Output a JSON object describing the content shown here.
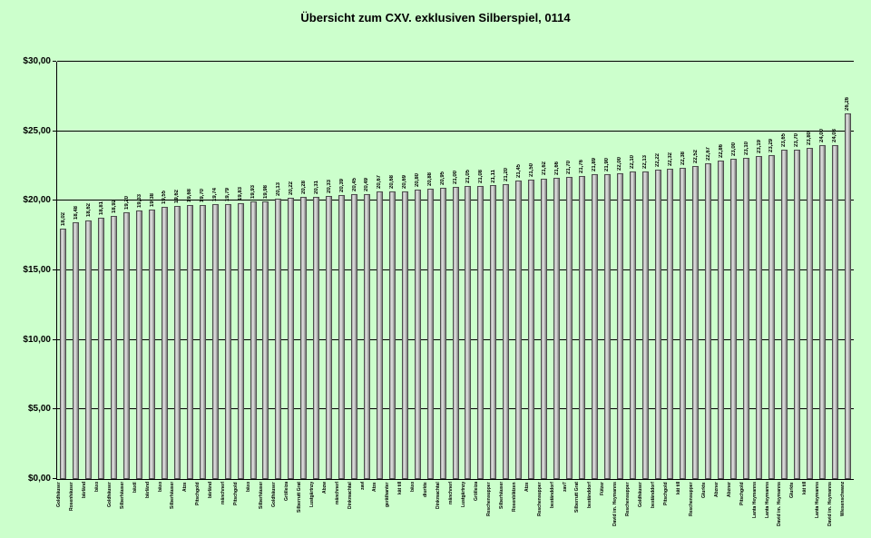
{
  "chart_data": {
    "type": "bar",
    "title": "Übersicht zum CXV. exklusiven Silberspiel, 0114",
    "xlabel": "",
    "ylabel": "",
    "ylim": [
      0,
      30
    ],
    "grid": true,
    "legend_position": "none",
    "background_color": "#ccffcc",
    "bar_color": "#b0b0b0",
    "y_ticks": [
      {
        "value": 0,
        "label": "$0,00"
      },
      {
        "value": 5,
        "label": "$5,00"
      },
      {
        "value": 10,
        "label": "$10,00"
      },
      {
        "value": 15,
        "label": "$15,00"
      },
      {
        "value": 20,
        "label": "$20,00"
      },
      {
        "value": 25,
        "label": "$25,00"
      },
      {
        "value": 30,
        "label": "$30,00"
      }
    ],
    "categories": [
      "Goldhäuser",
      "Rosenhäuser",
      "bärländ",
      "bäxx",
      "Goldhäuser",
      "Silberhäuser",
      "bäxtl",
      "bärländ",
      "bäxx",
      "Silberhäuser",
      "Ätze",
      "Pitschgold",
      "bärländ",
      "mänchnerl",
      "Pitschgold",
      "bäxx",
      "Silberhäuser",
      "Goldhäuser",
      "Grölleiza",
      "Silberrutt Grat",
      "Lustgärtnzy",
      "Abzw",
      "mänchnerl",
      "Dinkmachtal",
      "zavl",
      "Ätze",
      "geräthanter",
      "kät till",
      "bäxx",
      "diurkte",
      "Dinkmachtal",
      "mänchnerl",
      "Lustgärtnzy",
      "Grölleiza",
      "Reschensupper",
      "Silberhäuser",
      "Rosenblätzen",
      "Ätze",
      "Reschensupper",
      "beständdorf",
      "zav7",
      "Silberrutt Grat",
      "beständdorf",
      "Fützer",
      "David im. Heymanns",
      "Reschensupper",
      "Goldhäuser",
      "beständdorf",
      "Pitschgold",
      "kät till",
      "Reschensupper",
      "Glurkte",
      "Abzner",
      "Abzner",
      "Pitschgold",
      "Lanta Heymanns",
      "Lanta Heymanns",
      "David im. Heymanns",
      "Glurkte",
      "kät till",
      "Lanta Heymanns",
      "David im. Heymanns",
      "Wiesenschwanz"
    ],
    "values": [
      18.02,
      18.48,
      18.62,
      18.81,
      18.92,
      19.2,
      19.33,
      19.38,
      19.55,
      19.62,
      19.68,
      19.7,
      19.74,
      19.79,
      19.83,
      19.93,
      19.98,
      20.13,
      20.22,
      20.28,
      20.31,
      20.33,
      20.39,
      20.45,
      20.49,
      20.67,
      20.68,
      20.69,
      20.8,
      20.88,
      20.95,
      21.0,
      21.05,
      21.08,
      21.11,
      21.2,
      21.45,
      21.5,
      21.62,
      21.66,
      21.7,
      21.76,
      21.89,
      21.9,
      22.0,
      22.1,
      22.13,
      22.22,
      22.32,
      22.38,
      22.52,
      22.67,
      22.86,
      23.0,
      23.1,
      23.19,
      23.29,
      23.65,
      23.7,
      23.8,
      24.0,
      24.03,
      26.26
    ],
    "value_label_decimal_separator": ","
  }
}
